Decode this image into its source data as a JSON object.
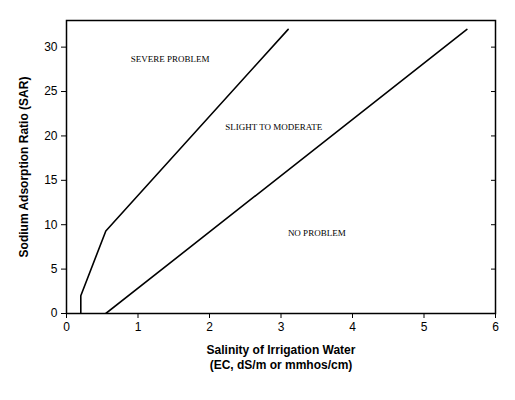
{
  "chart_data": {
    "type": "line",
    "x_label": "Salinity of Irrigation Water\n(EC, dS/m or mmhos/cm)",
    "y_label": "Sodium Adsorption Ratio (SAR)",
    "xlim": [
      0,
      6
    ],
    "ylim": [
      0,
      33
    ],
    "xticks": [
      0,
      1,
      2,
      3,
      4,
      5,
      6
    ],
    "yticks": [
      0,
      5,
      10,
      15,
      20,
      25,
      30
    ],
    "grid": false,
    "series": [
      {
        "color": "#000000",
        "x": [
          0.2,
          0.2,
          0.55,
          3.1
        ],
        "values": [
          0,
          2,
          9.3,
          32
        ]
      },
      {
        "color": "#000000",
        "x": [
          0.55,
          5.6
        ],
        "values": [
          0,
          32
        ]
      }
    ],
    "annotations": [
      {
        "text": "SEVERE PROBLEM",
        "x": 1.45,
        "y": 28.6
      },
      {
        "text": "SLIGHT TO MODERATE",
        "x": 2.9,
        "y": 21
      },
      {
        "text": "NO PROBLEM",
        "x": 3.5,
        "y": 9
      }
    ]
  }
}
